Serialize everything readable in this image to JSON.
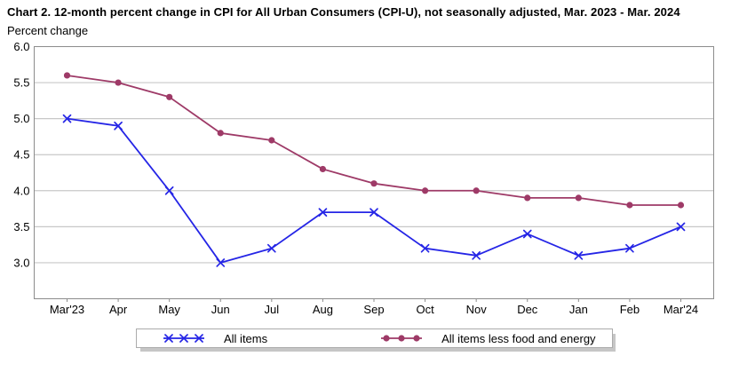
{
  "header": {
    "title": "Chart 2. 12-month percent change in CPI for All Urban Consumers (CPI-U), not seasonally adjusted, Mar. 2023 - Mar. 2024",
    "y_axis_label": "Percent change"
  },
  "chart_data": {
    "type": "line",
    "title": "Chart 2. 12-month percent change in CPI for All Urban Consumers (CPI-U), not seasonally adjusted, Mar. 2023 - Mar. 2024",
    "xlabel": "",
    "ylabel": "Percent change",
    "categories": [
      "Mar'23",
      "Apr",
      "May",
      "Jun",
      "Jul",
      "Aug",
      "Sep",
      "Oct",
      "Nov",
      "Dec",
      "Jan",
      "Feb",
      "Mar'24"
    ],
    "series": [
      {
        "name": "All items",
        "marker": "x",
        "color": "#2525e6",
        "values": [
          5.0,
          4.9,
          4.0,
          3.0,
          3.2,
          3.7,
          3.7,
          3.2,
          3.1,
          3.4,
          3.1,
          3.2,
          3.5
        ]
      },
      {
        "name": "All items less food and energy",
        "marker": "circle",
        "color": "#9e3a67",
        "values": [
          5.6,
          5.5,
          5.3,
          4.8,
          4.7,
          4.3,
          4.1,
          4.0,
          4.0,
          3.9,
          3.9,
          3.8,
          3.8
        ]
      }
    ],
    "y_ticks": [
      3.0,
      3.5,
      4.0,
      4.5,
      5.0,
      5.5,
      6.0
    ],
    "ylim": [
      2.5,
      6.0
    ],
    "grid": true,
    "legend_position": "bottom"
  },
  "colors": {
    "grid_line": "#c8c8c8",
    "plot_border": "#8c8c8c",
    "tick_mark": "#8c8c8c",
    "legend_border": "#ababab",
    "legend_shadow": "#c6c6c6",
    "text": "#000000"
  }
}
